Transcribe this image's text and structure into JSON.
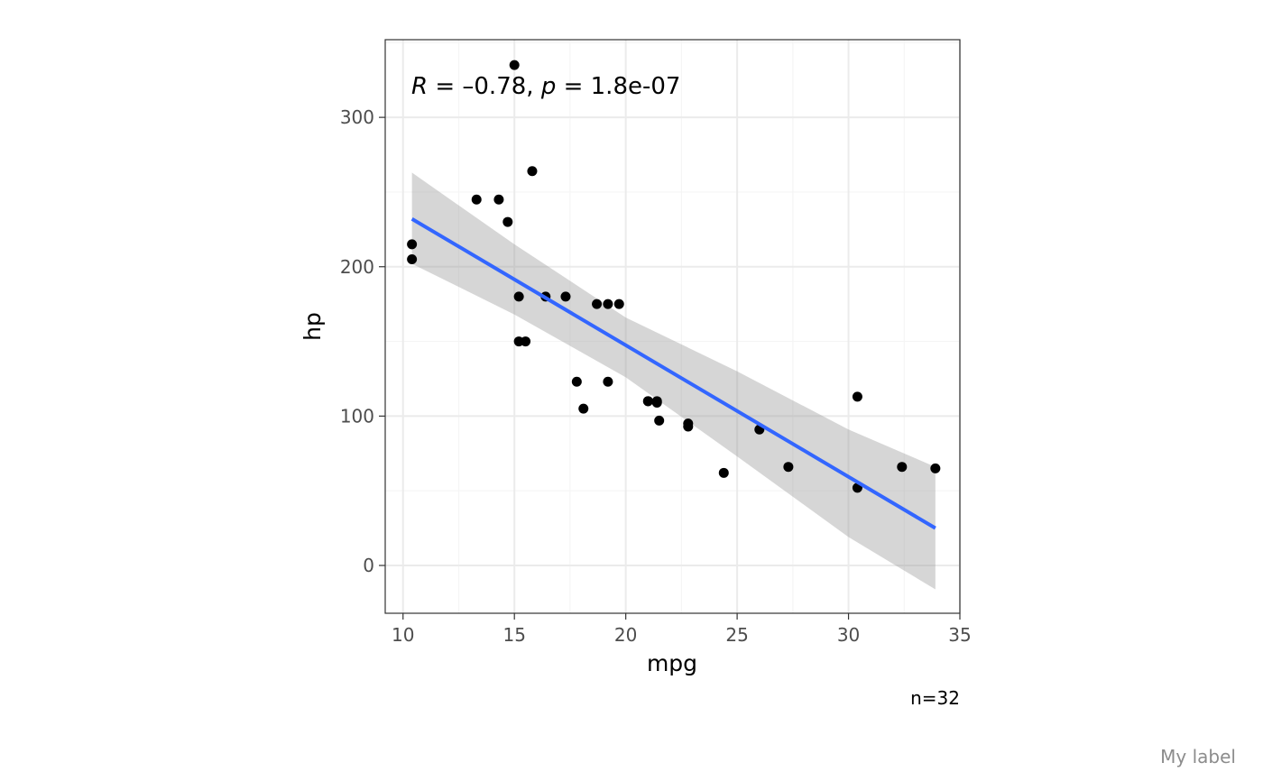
{
  "chart_data": {
    "type": "scatter",
    "xlabel": "mpg",
    "ylabel": "hp",
    "xlim": [
      9.2,
      35.0
    ],
    "ylim": [
      -32,
      352
    ],
    "x_ticks": [
      10,
      15,
      20,
      25,
      30,
      35
    ],
    "y_ticks": [
      0,
      100,
      200,
      300
    ],
    "grid": true,
    "points": [
      {
        "x": 21.0,
        "y": 110
      },
      {
        "x": 21.0,
        "y": 110
      },
      {
        "x": 22.8,
        "y": 93
      },
      {
        "x": 21.4,
        "y": 110
      },
      {
        "x": 18.7,
        "y": 175
      },
      {
        "x": 18.1,
        "y": 105
      },
      {
        "x": 14.3,
        "y": 245
      },
      {
        "x": 24.4,
        "y": 62
      },
      {
        "x": 22.8,
        "y": 95
      },
      {
        "x": 19.2,
        "y": 123
      },
      {
        "x": 17.8,
        "y": 123
      },
      {
        "x": 16.4,
        "y": 180
      },
      {
        "x": 17.3,
        "y": 180
      },
      {
        "x": 15.2,
        "y": 180
      },
      {
        "x": 10.4,
        "y": 205
      },
      {
        "x": 10.4,
        "y": 215
      },
      {
        "x": 14.7,
        "y": 230
      },
      {
        "x": 32.4,
        "y": 66
      },
      {
        "x": 30.4,
        "y": 52
      },
      {
        "x": 33.9,
        "y": 65
      },
      {
        "x": 21.5,
        "y": 97
      },
      {
        "x": 15.5,
        "y": 150
      },
      {
        "x": 15.2,
        "y": 150
      },
      {
        "x": 13.3,
        "y": 245
      },
      {
        "x": 19.2,
        "y": 175
      },
      {
        "x": 27.3,
        "y": 66
      },
      {
        "x": 26.0,
        "y": 91
      },
      {
        "x": 30.4,
        "y": 113
      },
      {
        "x": 15.8,
        "y": 264
      },
      {
        "x": 19.7,
        "y": 175
      },
      {
        "x": 15.0,
        "y": 335
      },
      {
        "x": 21.4,
        "y": 109
      }
    ],
    "fit": {
      "x": [
        10.4,
        33.9
      ],
      "y": [
        232,
        25
      ]
    },
    "confidence_band": {
      "x": [
        10.4,
        15.0,
        20.0,
        25.0,
        30.0,
        33.9
      ],
      "lower": [
        202,
        168,
        126,
        73,
        19,
        -16
      ],
      "upper": [
        263,
        215,
        166,
        130,
        91,
        66
      ]
    },
    "annotation": {
      "r_label": "R",
      "r_eq": " = –0.78, ",
      "p_label": "p",
      "p_eq": " = 1.8e-07"
    },
    "caption": "n=32",
    "tag": "My label",
    "colors": {
      "points": "#000000",
      "fit_line": "#3366FF",
      "band": "#999999",
      "panel_border": "#333333",
      "grid_major": "#ebebeb",
      "grid_minor": "#f5f5f5"
    }
  }
}
